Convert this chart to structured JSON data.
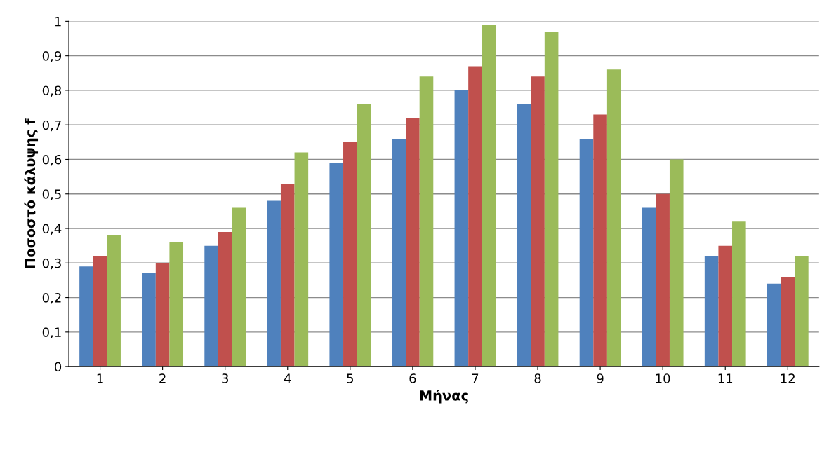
{
  "chart_data": {
    "type": "bar",
    "xlabel": "Μήνας",
    "ylabel": "Ποσοστό κάλυψης f",
    "categories": [
      "1",
      "2",
      "3",
      "4",
      "5",
      "6",
      "7",
      "8",
      "9",
      "10",
      "11",
      "12"
    ],
    "series": [
      {
        "color": "#4f81bd",
        "values": [
          0.29,
          0.27,
          0.35,
          0.48,
          0.59,
          0.66,
          0.8,
          0.76,
          0.66,
          0.46,
          0.32,
          0.24
        ]
      },
      {
        "color": "#c0504d",
        "values": [
          0.32,
          0.3,
          0.39,
          0.53,
          0.65,
          0.72,
          0.87,
          0.84,
          0.73,
          0.5,
          0.35,
          0.26
        ]
      },
      {
        "color": "#9bbb59",
        "values": [
          0.38,
          0.36,
          0.46,
          0.62,
          0.76,
          0.84,
          0.99,
          0.97,
          0.86,
          0.6,
          0.42,
          0.32
        ]
      }
    ],
    "ylim": [
      0,
      1
    ],
    "yticks": [
      0,
      {
        "value": 0.1,
        "label": "0,1"
      },
      {
        "value": 0.2,
        "label": "0,2"
      },
      {
        "value": 0.3,
        "label": "0,3"
      },
      {
        "value": 0.4,
        "label": "0,4"
      },
      {
        "value": 0.5,
        "label": "0,5"
      },
      {
        "value": 0.6,
        "label": "0,6"
      },
      {
        "value": 0.7,
        "label": "0,7"
      },
      {
        "value": 0.8,
        "label": "0,8"
      },
      {
        "value": 0.9,
        "label": "0,9"
      },
      1
    ],
    "grid": "y"
  }
}
